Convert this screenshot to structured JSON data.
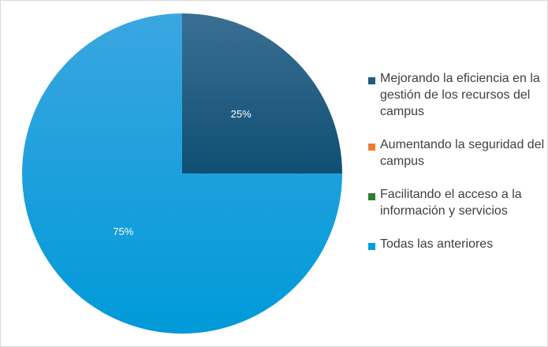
{
  "chart_data": {
    "type": "pie",
    "categories": [
      "Mejorando la eficiencia en la gestión de los recursos del campus",
      "Aumentando la seguridad del campus",
      "Facilitando el acceso a la información y servicios",
      "Todas las anteriores"
    ],
    "values": [
      25,
      0,
      0,
      75
    ],
    "data_labels": [
      "25%",
      "",
      "",
      "75%"
    ],
    "colors": [
      "#1f5c80",
      "#ed7d31",
      "#2e7d32",
      "#069edb"
    ],
    "legend_position": "right",
    "start_angle": "12 o'clock, clockwise"
  },
  "legend": {
    "items": [
      {
        "label": "Mejorando la eficiencia en la gestión de los recursos del campus",
        "color": "#1f5c80"
      },
      {
        "label": "Aumentando la seguridad del campus",
        "color": "#ed7d31"
      },
      {
        "label": "Facilitando el acceso a la información y servicios",
        "color": "#2e7d32"
      },
      {
        "label": "Todas las anteriores",
        "color": "#069edb"
      }
    ]
  }
}
